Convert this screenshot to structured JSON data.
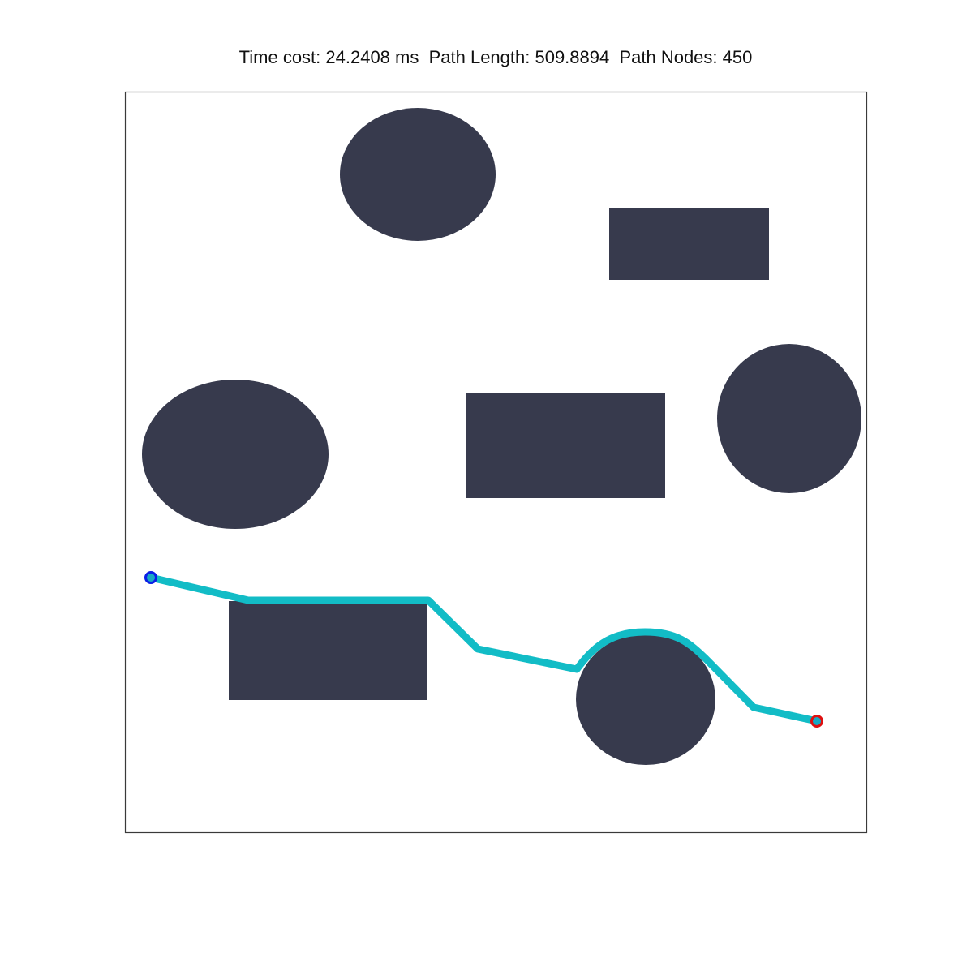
{
  "figure": {
    "title": "Time cost: 24.2408 ms  Path Length: 509.8894  Path Nodes: 450"
  },
  "colors": {
    "background": "#ffffff",
    "frame": "#3a3a3a",
    "obstacle": "#373a4d",
    "path": "#12bcc6",
    "start_marker": "#0a1ee6",
    "goal_marker": "#e01010",
    "marker_fill": "#17a9c4"
  },
  "map": {
    "obstacles": [
      {
        "name": "ellipse-obstacle-top",
        "shape": "ellipse"
      },
      {
        "name": "rectangle-obstacle-top-right",
        "shape": "rectangle"
      },
      {
        "name": "ellipse-obstacle-left",
        "shape": "ellipse"
      },
      {
        "name": "rectangle-obstacle-center",
        "shape": "rectangle"
      },
      {
        "name": "circle-obstacle-right",
        "shape": "circle"
      },
      {
        "name": "rectangle-obstacle-bottom-left",
        "shape": "rectangle"
      },
      {
        "name": "circle-obstacle-bottom",
        "shape": "circle"
      }
    ],
    "start_marker": "start-point",
    "goal_marker": "goal-point"
  }
}
